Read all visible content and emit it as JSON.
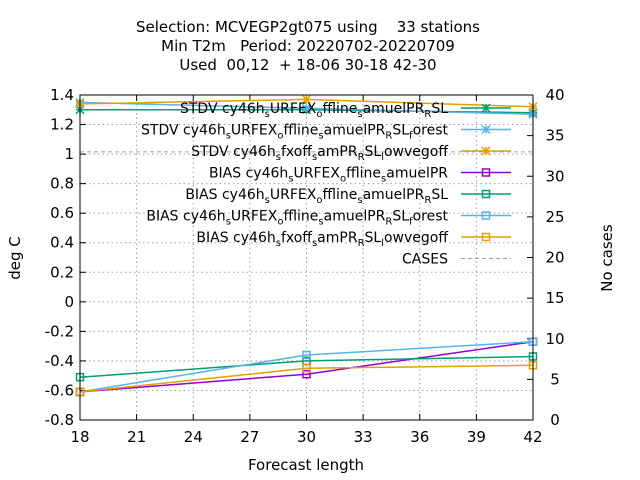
{
  "chart_data": {
    "type": "line",
    "title_lines": [
      "Selection: MCVEGP2gt075 using    33 stations",
      "Min T2m   Period: 20220702-20220709",
      "Used  00,12  + 18-06 30-18 42-30"
    ],
    "xlabel": "Forecast length",
    "ylabel": "deg C",
    "y2label": "No cases",
    "xlim": [
      18,
      42
    ],
    "ylim": [
      -0.8,
      1.4
    ],
    "y2lim": [
      0,
      40
    ],
    "x_ticks": [
      "18",
      "21",
      "24",
      "27",
      "30",
      "33",
      "36",
      "39",
      "42"
    ],
    "y_ticks": [
      "1.4",
      "1.2",
      "1",
      "0.8",
      "0.6",
      "0.4",
      "0.2",
      "0",
      "-0.2",
      "-0.4",
      "-0.6",
      "-0.8"
    ],
    "y2_ticks": [
      "40",
      "35",
      "30",
      "25",
      "20",
      "15",
      "10",
      "5",
      "0"
    ],
    "grid": true,
    "legend_position": "top-right",
    "x": [
      18,
      30,
      42
    ],
    "series": [
      {
        "name": "STDV cy46h_sURFEX_offline_samuelPR_RSL",
        "label_main": "STDV cy46h",
        "label_rest": "URFEX",
        "label_tail": "ffline",
        "label_tail2": "amuelPR",
        "label_tail3": "SL",
        "values": [
          1.3,
          1.3,
          1.28
        ],
        "color": "#009e73",
        "marker": "x-star",
        "axis": "y1"
      },
      {
        "name": "STDV cy46h_sURFEX_offline_samuelPR_RSL_forest",
        "values": [
          1.35,
          1.31,
          1.27
        ],
        "color": "#56b4e9",
        "marker": "x-star",
        "axis": "y1"
      },
      {
        "name": "STDV cy46h_sfxoff_samPR_RSL_lowvegoff",
        "values": [
          1.34,
          1.37,
          1.32
        ],
        "color": "#e69f00",
        "marker": "x-star",
        "axis": "y1"
      },
      {
        "name": "BIAS cy46h_sURFEX_offline_samuelPR",
        "values": [
          -0.61,
          -0.49,
          -0.27
        ],
        "color": "#9400d3",
        "marker": "square",
        "axis": "y1"
      },
      {
        "name": "BIAS cy46h_sURFEX_offline_samuelPR_RSL",
        "values": [
          -0.51,
          -0.4,
          -0.37
        ],
        "color": "#009e73",
        "marker": "square",
        "axis": "y1"
      },
      {
        "name": "BIAS cy46h_sURFEX_offline_samuelPR_RSL_forest",
        "values": [
          -0.61,
          -0.36,
          -0.27
        ],
        "color": "#56b4e9",
        "marker": "square",
        "axis": "y1"
      },
      {
        "name": "BIAS cy46h_sfxoff_samPR_RSL_lowvegoff",
        "values": [
          -0.61,
          -0.45,
          -0.43
        ],
        "color": "#e69f00",
        "marker": "square",
        "axis": "y1"
      },
      {
        "name": "CASES",
        "values": [
          33,
          33,
          33
        ],
        "color": "#a0a0a0",
        "marker": "none",
        "dashed": true,
        "axis": "y2"
      }
    ],
    "legend": [
      {
        "parts": [
          [
            "STDV cy46h",
            ""
          ],
          [
            "s",
            "sub"
          ],
          [
            "URFEX",
            ""
          ],
          [
            "o",
            "sub"
          ],
          [
            "ffline",
            ""
          ],
          [
            "s",
            "sub"
          ],
          [
            "amuelPR",
            ""
          ],
          [
            "R",
            "sub"
          ],
          [
            "SL",
            ""
          ]
        ],
        "series": 0
      },
      {
        "parts": [
          [
            "STDV cy46h",
            ""
          ],
          [
            "s",
            "sub"
          ],
          [
            "URFEX",
            ""
          ],
          [
            "o",
            "sub"
          ],
          [
            "ffline",
            ""
          ],
          [
            "s",
            "sub"
          ],
          [
            "amuelPR",
            ""
          ],
          [
            "R",
            "sub"
          ],
          [
            "SL",
            ""
          ],
          [
            "f",
            "sub"
          ],
          [
            "orest",
            ""
          ]
        ],
        "series": 1
      },
      {
        "parts": [
          [
            "STDV cy46h",
            ""
          ],
          [
            "s",
            "sub"
          ],
          [
            "fxoff",
            ""
          ],
          [
            "s",
            "sub"
          ],
          [
            "amPR",
            ""
          ],
          [
            "R",
            "sub"
          ],
          [
            "SL",
            ""
          ],
          [
            "l",
            "sub"
          ],
          [
            "owvegoff",
            ""
          ]
        ],
        "series": 2
      },
      {
        "parts": [
          [
            "BIAS cy46h",
            ""
          ],
          [
            "s",
            "sub"
          ],
          [
            "URFEX",
            ""
          ],
          [
            "o",
            "sub"
          ],
          [
            "ffline",
            ""
          ],
          [
            "s",
            "sub"
          ],
          [
            "amuelPR",
            ""
          ]
        ],
        "series": 3
      },
      {
        "parts": [
          [
            "BIAS cy46h",
            ""
          ],
          [
            "s",
            "sub"
          ],
          [
            "URFEX",
            ""
          ],
          [
            "o",
            "sub"
          ],
          [
            "ffline",
            ""
          ],
          [
            "s",
            "sub"
          ],
          [
            "amuelPR",
            ""
          ],
          [
            "R",
            "sub"
          ],
          [
            "SL",
            ""
          ]
        ],
        "series": 4
      },
      {
        "parts": [
          [
            "BIAS cy46h",
            ""
          ],
          [
            "s",
            "sub"
          ],
          [
            "URFEX",
            ""
          ],
          [
            "o",
            "sub"
          ],
          [
            "ffline",
            ""
          ],
          [
            "s",
            "sub"
          ],
          [
            "amuelPR",
            ""
          ],
          [
            "R",
            "sub"
          ],
          [
            "SL",
            ""
          ],
          [
            "f",
            "sub"
          ],
          [
            "orest",
            ""
          ]
        ],
        "series": 5
      },
      {
        "parts": [
          [
            "BIAS cy46h",
            ""
          ],
          [
            "s",
            "sub"
          ],
          [
            "fxoff",
            ""
          ],
          [
            "s",
            "sub"
          ],
          [
            "amPR",
            ""
          ],
          [
            "R",
            "sub"
          ],
          [
            "SL",
            ""
          ],
          [
            "l",
            "sub"
          ],
          [
            "owvegoff",
            ""
          ]
        ],
        "series": 6
      },
      {
        "parts": [
          [
            "CASES",
            ""
          ]
        ],
        "series": 7
      }
    ]
  }
}
